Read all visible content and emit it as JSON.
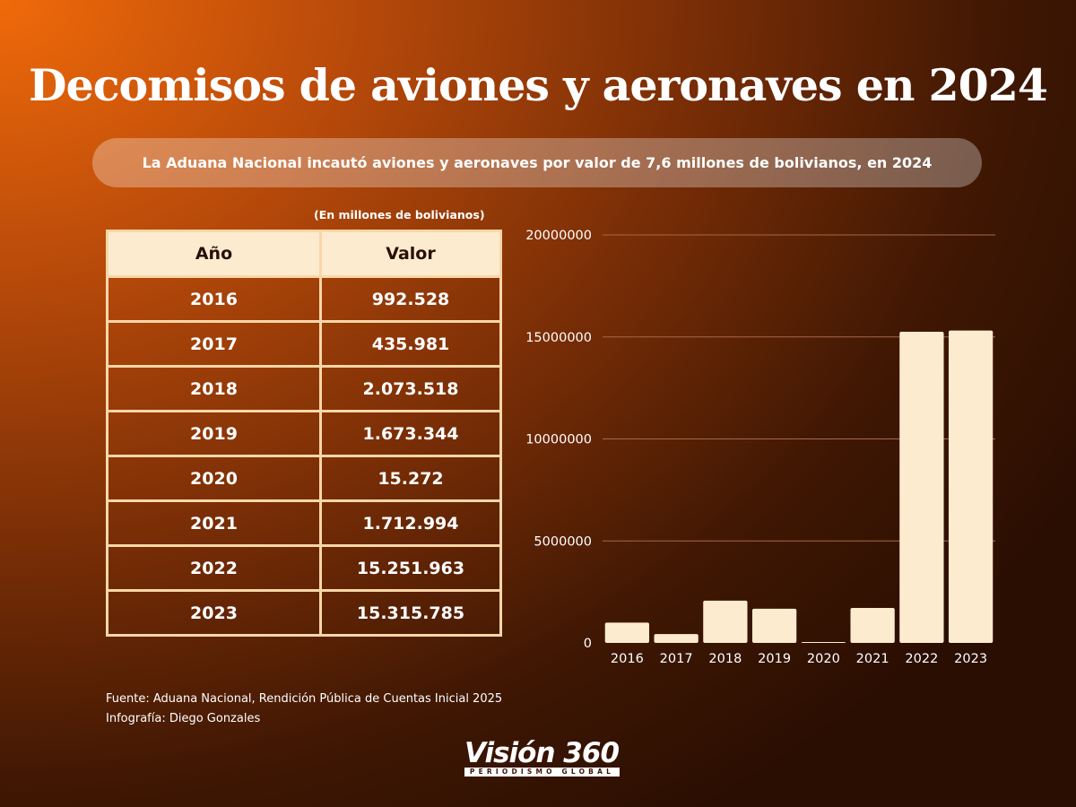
{
  "title": "Decomisos de aviones y aeronaves en 2024",
  "subtitle": "La Aduana Nacional incautó aviones y aeronaves por valor de 7,6 millones de bolivianos, en 2024",
  "units_note": "(En millones de bolivianos)",
  "table": {
    "headers": [
      "Año",
      "Valor"
    ],
    "rows": [
      [
        "2016",
        "992.528"
      ],
      [
        "2017",
        "435.981"
      ],
      [
        "2018",
        "2.073.518"
      ],
      [
        "2019",
        "1.673.344"
      ],
      [
        "2020",
        "15.272"
      ],
      [
        "2021",
        "1.712.994"
      ],
      [
        "2022",
        "15.251.963"
      ],
      [
        "2023",
        "15.315.785"
      ]
    ]
  },
  "source_line": "Fuente: Aduana Nacional, Rendición Pública de Cuentas Inicial 2025",
  "credit_line": "Infografía: Diego Gonzales",
  "logo": {
    "name": "Visión 360",
    "tagline": "PERIODISMO GLOBAL"
  },
  "colors": {
    "bar": "#fdebcf",
    "grid": "#a8674a",
    "table_border": "#f9d7a8",
    "header_bg": "#fdebcf"
  },
  "chart_data": {
    "type": "bar",
    "categories": [
      "2016",
      "2017",
      "2018",
      "2019",
      "2020",
      "2021",
      "2022",
      "2023"
    ],
    "values": [
      992528,
      435981,
      2073518,
      1673344,
      15272,
      1712994,
      15251963,
      15315785
    ],
    "ylim": [
      0,
      20000000
    ],
    "yticks": [
      0,
      5000000,
      10000000,
      15000000,
      20000000
    ],
    "ytick_labels": [
      "0",
      "5000000",
      "10000000",
      "15000000",
      "20000000"
    ],
    "title": "",
    "xlabel": "",
    "ylabel": "",
    "grid": true
  }
}
